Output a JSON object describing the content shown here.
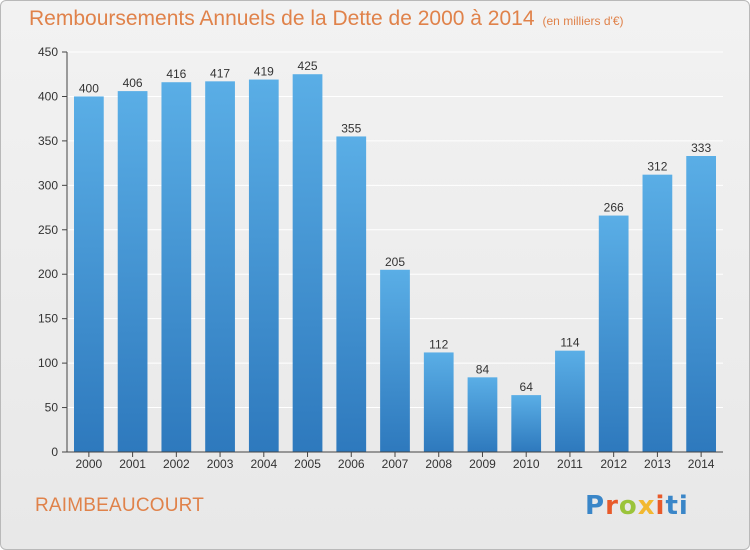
{
  "title": "Remboursements Annuels de la Dette de 2000 à 2014",
  "unit_note": "(en milliers d'€)",
  "commune": "RAIMBEAUCOURT",
  "brand": {
    "name": "Proxiti",
    "letters": [
      "P",
      "r",
      "o",
      "x",
      "i",
      "ti"
    ]
  },
  "colors": {
    "bar_top": "#5aaee6",
    "bar_bottom": "#2e79bd",
    "title": "#e0824a",
    "grid": "#ffffff"
  },
  "chart_data": {
    "type": "bar",
    "categories": [
      "2000",
      "2001",
      "2002",
      "2003",
      "2004",
      "2005",
      "2006",
      "2007",
      "2008",
      "2009",
      "2010",
      "2011",
      "2012",
      "2013",
      "2014"
    ],
    "values": [
      400,
      406,
      416,
      417,
      419,
      425,
      355,
      205,
      112,
      84,
      64,
      114,
      266,
      312,
      333
    ],
    "ylim": [
      0,
      450
    ],
    "yticks": [
      0,
      50,
      100,
      150,
      200,
      250,
      300,
      350,
      400,
      450
    ],
    "grid": true,
    "data_labels": true
  }
}
